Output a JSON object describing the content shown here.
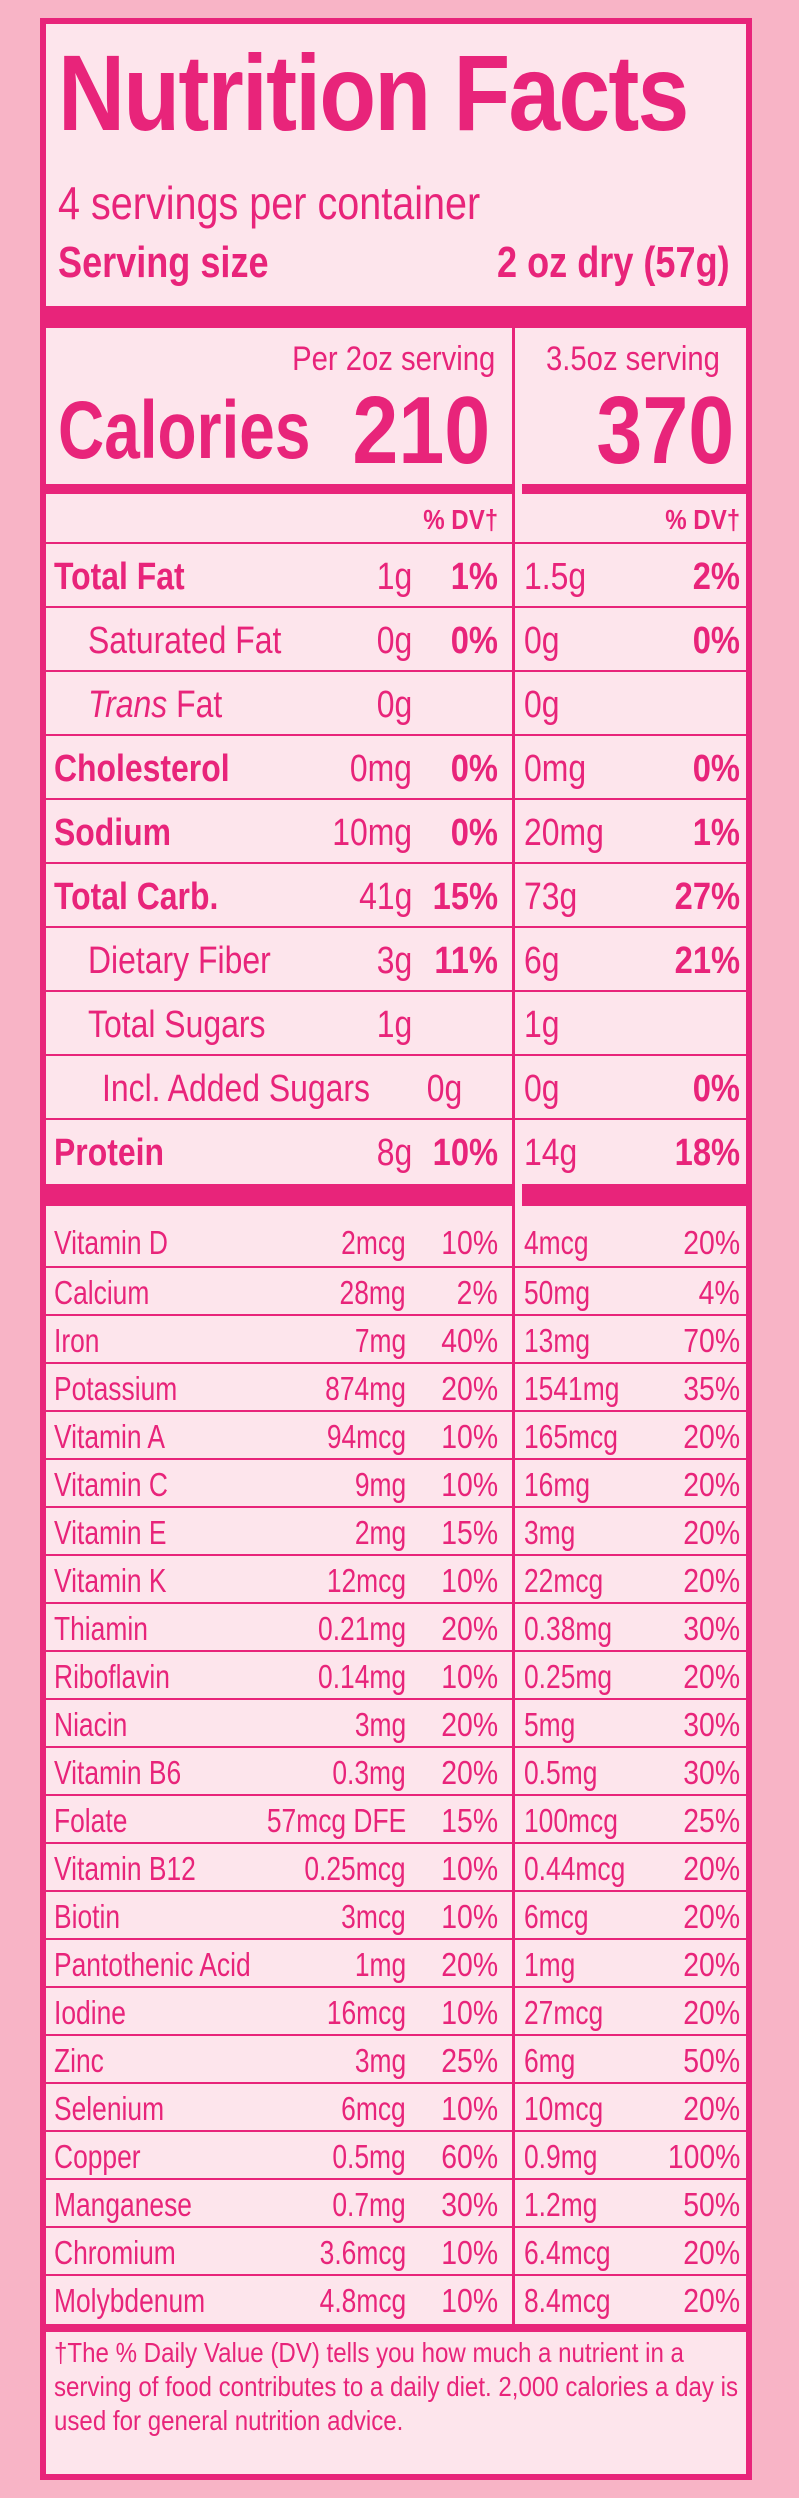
{
  "title": "Nutrition Facts",
  "servings_per_container": "4 servings per container",
  "serving_size_label": "Serving size",
  "serving_size_value": "2 oz dry (57g)",
  "col1_header": "Per 2oz serving",
  "col2_header": "3.5oz serving",
  "calories_label": "Calories",
  "calories_col1": "210",
  "calories_col2": "370",
  "dv_header": "% DV†",
  "accent_color": "#e8247a",
  "background_color": "#fde5ec",
  "nutrients": [
    {
      "label": "Total Fat",
      "amount": "1g",
      "dv": "1%",
      "amount2": "1.5g",
      "dv2": "2%"
    },
    {
      "label": "Saturated Fat",
      "amount": "0g",
      "dv": "0%",
      "amount2": "0g",
      "dv2": "0%"
    },
    {
      "label_italic": "Trans",
      "label_rest": " Fat",
      "amount": "0g",
      "dv": "",
      "amount2": "0g",
      "dv2": ""
    },
    {
      "label": "Cholesterol",
      "amount": "0mg",
      "dv": "0%",
      "amount2": "0mg",
      "dv2": "0%"
    },
    {
      "label": "Sodium",
      "amount": "10mg",
      "dv": "0%",
      "amount2": "20mg",
      "dv2": "1%"
    },
    {
      "label": "Total Carb.",
      "amount": "41g",
      "dv": "15%",
      "amount2": "73g",
      "dv2": "27%"
    },
    {
      "label": "Dietary Fiber",
      "amount": "3g",
      "dv": "11%",
      "amount2": "6g",
      "dv2": "21%"
    },
    {
      "label": "Total Sugars",
      "amount": "1g",
      "dv": "",
      "amount2": "1g",
      "dv2": ""
    },
    {
      "label": "Incl. Added Sugars",
      "amount": "0g",
      "dv": "",
      "amount2": "0g",
      "dv2": "0%"
    },
    {
      "label": "Protein",
      "amount": "8g",
      "dv": "10%",
      "amount2": "14g",
      "dv2": "18%"
    }
  ],
  "vitamins": [
    {
      "label": "Vitamin D",
      "amount": "2mcg",
      "dv": "10%",
      "amount2": "4mcg",
      "dv2": "20%"
    },
    {
      "label": "Calcium",
      "amount": "28mg",
      "dv": "2%",
      "amount2": "50mg",
      "dv2": "4%"
    },
    {
      "label": "Iron",
      "amount": "7mg",
      "dv": "40%",
      "amount2": "13mg",
      "dv2": "70%"
    },
    {
      "label": "Potassium",
      "amount": "874mg",
      "dv": "20%",
      "amount2": "1541mg",
      "dv2": "35%"
    },
    {
      "label": "Vitamin A",
      "amount": "94mcg",
      "dv": "10%",
      "amount2": "165mcg",
      "dv2": "20%"
    },
    {
      "label": "Vitamin C",
      "amount": "9mg",
      "dv": "10%",
      "amount2": "16mg",
      "dv2": "20%"
    },
    {
      "label": "Vitamin E",
      "amount": "2mg",
      "dv": "15%",
      "amount2": "3mg",
      "dv2": "20%"
    },
    {
      "label": "Vitamin K",
      "amount": "12mcg",
      "dv": "10%",
      "amount2": "22mcg",
      "dv2": "20%"
    },
    {
      "label": "Thiamin",
      "amount": "0.21mg",
      "dv": "20%",
      "amount2": "0.38mg",
      "dv2": "30%"
    },
    {
      "label": "Riboflavin",
      "amount": "0.14mg",
      "dv": "10%",
      "amount2": "0.25mg",
      "dv2": "20%"
    },
    {
      "label": "Niacin",
      "amount": "3mg",
      "dv": "20%",
      "amount2": "5mg",
      "dv2": "30%"
    },
    {
      "label": "Vitamin B6",
      "amount": "0.3mg",
      "dv": "20%",
      "amount2": "0.5mg",
      "dv2": "30%"
    },
    {
      "label": "Folate",
      "amount": "57mcg DFE",
      "dv": "15%",
      "amount2": "100mcg",
      "dv2": "25%"
    },
    {
      "label": "Vitamin B12",
      "amount": "0.25mcg",
      "dv": "10%",
      "amount2": "0.44mcg",
      "dv2": "20%"
    },
    {
      "label": "Biotin",
      "amount": "3mcg",
      "dv": "10%",
      "amount2": "6mcg",
      "dv2": "20%"
    },
    {
      "label": "Pantothenic Acid",
      "amount": "1mg",
      "dv": "20%",
      "amount2": "1mg",
      "dv2": "20%"
    },
    {
      "label": "Iodine",
      "amount": "16mcg",
      "dv": "10%",
      "amount2": "27mcg",
      "dv2": "20%"
    },
    {
      "label": "Zinc",
      "amount": "3mg",
      "dv": "25%",
      "amount2": "6mg",
      "dv2": "50%"
    },
    {
      "label": "Selenium",
      "amount": "6mcg",
      "dv": "10%",
      "amount2": "10mcg",
      "dv2": "20%"
    },
    {
      "label": "Copper",
      "amount": "0.5mg",
      "dv": "60%",
      "amount2": "0.9mg",
      "dv2": "100%"
    },
    {
      "label": "Manganese",
      "amount": "0.7mg",
      "dv": "30%",
      "amount2": "1.2mg",
      "dv2": "50%"
    },
    {
      "label": "Chromium",
      "amount": "3.6mcg",
      "dv": "10%",
      "amount2": "6.4mcg",
      "dv2": "20%"
    },
    {
      "label": "Molybdenum",
      "amount": "4.8mcg",
      "dv": "10%",
      "amount2": "8.4mcg",
      "dv2": "20%"
    }
  ],
  "footnote": "†The % Daily Value (DV) tells you how much a nutrient in a serving of food contributes to a daily diet. 2,000 calories a day is used for general nutrition advice."
}
